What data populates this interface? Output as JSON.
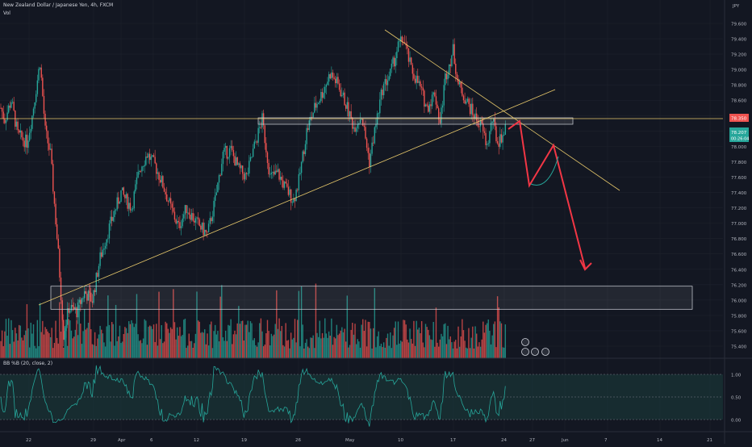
{
  "header": {
    "symbol_title": "New Zealand Dollar / Japanese Yen, 4h, FXCM",
    "volume_label": "Vol",
    "indicator_label": "BB %B (20, close, 2)",
    "currency": "JPY"
  },
  "colors": {
    "background": "#131722",
    "up": "#26a69a",
    "down": "#ef5350",
    "trendline": "#e8c96b",
    "projection": "#f23645",
    "projection_curve": "#26a69a",
    "grid": "#1e222d",
    "indicator_line": "#26a69a",
    "indicator_fill": "#1a3a3a",
    "price_tag": "#ef5350",
    "price_tag_green": "#26a69a"
  },
  "chart_data": {
    "type": "candlestick",
    "title": "New Zealand Dollar / Japanese Yen, 4h, FXCM",
    "y_axis": {
      "unit": "JPY",
      "ticks": [
        "79.600",
        "79.400",
        "79.200",
        "79.000",
        "78.800",
        "78.600",
        "78.400",
        "78.200",
        "78.000",
        "77.800",
        "77.600",
        "77.400",
        "77.200",
        "77.000",
        "76.800",
        "76.600",
        "76.400",
        "76.200",
        "76.000",
        "75.800",
        "75.600",
        "75.400"
      ],
      "range": [
        75.3,
        79.75
      ]
    },
    "x_axis": {
      "ticks": [
        "22",
        "29",
        "Apr",
        "6",
        "12",
        "19",
        "26",
        "May",
        "10",
        "17",
        "24",
        "27",
        "Jun",
        "7",
        "14",
        "21"
      ]
    },
    "price_tags": {
      "resistance": "78.350",
      "current": "78.207",
      "countdown": "00:26:04"
    },
    "indicator": {
      "name": "BB %B (20, close, 2)",
      "ticks": [
        "1.00",
        "0.50",
        "0.00"
      ],
      "range": [
        -0.2,
        1.2
      ]
    },
    "key_levels": {
      "horizontal_resistance": 78.35,
      "demand_zone": [
        75.88,
        76.18
      ]
    },
    "path_keypoints": [
      [
        0,
        78.5
      ],
      [
        3,
        78.35
      ],
      [
        8,
        78.6
      ],
      [
        13,
        78.15
      ],
      [
        20,
        78.05
      ],
      [
        24,
        78.4
      ],
      [
        30,
        79.1
      ],
      [
        34,
        78.2
      ],
      [
        38,
        77.9
      ],
      [
        44,
        76.6
      ],
      [
        48,
        75.55
      ],
      [
        52,
        75.9
      ],
      [
        58,
        75.85
      ],
      [
        64,
        76.1
      ],
      [
        70,
        76.0
      ],
      [
        76,
        76.55
      ],
      [
        84,
        77.0
      ],
      [
        92,
        77.4
      ],
      [
        100,
        77.2
      ],
      [
        106,
        77.7
      ],
      [
        112,
        77.9
      ],
      [
        118,
        77.75
      ],
      [
        124,
        77.5
      ],
      [
        130,
        77.2
      ],
      [
        136,
        76.95
      ],
      [
        142,
        77.2
      ],
      [
        150,
        77.0
      ],
      [
        158,
        76.85
      ],
      [
        164,
        77.3
      ],
      [
        170,
        77.9
      ],
      [
        176,
        77.95
      ],
      [
        182,
        77.7
      ],
      [
        188,
        77.6
      ],
      [
        194,
        78.0
      ],
      [
        200,
        78.35
      ],
      [
        206,
        77.6
      ],
      [
        212,
        77.65
      ],
      [
        218,
        77.45
      ],
      [
        224,
        77.3
      ],
      [
        228,
        77.55
      ],
      [
        234,
        78.2
      ],
      [
        240,
        78.5
      ],
      [
        246,
        78.7
      ],
      [
        252,
        78.95
      ],
      [
        258,
        78.8
      ],
      [
        264,
        78.55
      ],
      [
        270,
        78.25
      ],
      [
        276,
        78.4
      ],
      [
        282,
        77.8
      ],
      [
        286,
        78.2
      ],
      [
        292,
        78.75
      ],
      [
        298,
        78.95
      ],
      [
        304,
        79.3
      ],
      [
        308,
        79.4
      ],
      [
        314,
        79.0
      ],
      [
        320,
        78.8
      ],
      [
        326,
        78.5
      ],
      [
        332,
        78.7
      ],
      [
        336,
        78.3
      ],
      [
        340,
        78.9
      ],
      [
        346,
        79.25
      ],
      [
        350,
        78.8
      ],
      [
        356,
        78.6
      ],
      [
        362,
        78.4
      ],
      [
        368,
        78.25
      ],
      [
        372,
        78.0
      ],
      [
        376,
        78.35
      ],
      [
        380,
        78.05
      ],
      [
        386,
        78.21
      ]
    ],
    "projection_path": [
      [
        0,
        78.35
      ],
      [
        1,
        77.55
      ],
      [
        2,
        78.0
      ],
      [
        3,
        76.35
      ]
    ],
    "volume_profile": "red and green volume bars beneath price",
    "annotations": []
  }
}
